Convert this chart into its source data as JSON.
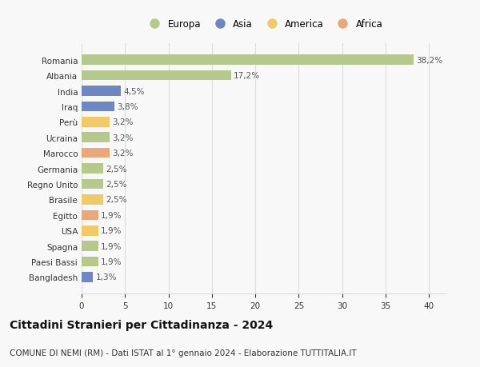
{
  "categories": [
    "Romania",
    "Albania",
    "India",
    "Iraq",
    "Perù",
    "Ucraina",
    "Marocco",
    "Germania",
    "Regno Unito",
    "Brasile",
    "Egitto",
    "USA",
    "Spagna",
    "Paesi Bassi",
    "Bangladesh"
  ],
  "values": [
    38.2,
    17.2,
    4.5,
    3.8,
    3.2,
    3.2,
    3.2,
    2.5,
    2.5,
    2.5,
    1.9,
    1.9,
    1.9,
    1.9,
    1.3
  ],
  "labels": [
    "38,2%",
    "17,2%",
    "4,5%",
    "3,8%",
    "3,2%",
    "3,2%",
    "3,2%",
    "2,5%",
    "2,5%",
    "2,5%",
    "1,9%",
    "1,9%",
    "1,9%",
    "1,9%",
    "1,3%"
  ],
  "colors": [
    "#b5c98e",
    "#b5c98e",
    "#6f87c0",
    "#6f87c0",
    "#f0c96a",
    "#b5c98e",
    "#e8a87c",
    "#b5c98e",
    "#b5c98e",
    "#f0c96a",
    "#e8a87c",
    "#f0c96a",
    "#b5c98e",
    "#b5c98e",
    "#6f87c0"
  ],
  "legend_labels": [
    "Europa",
    "Asia",
    "America",
    "Africa"
  ],
  "legend_colors": [
    "#b5c98e",
    "#6f87c0",
    "#f0c96a",
    "#e8a87c"
  ],
  "xlim": [
    0,
    42
  ],
  "xticks": [
    0,
    5,
    10,
    15,
    20,
    25,
    30,
    35,
    40
  ],
  "title": "Cittadini Stranieri per Cittadinanza - 2024",
  "subtitle": "COMUNE DI NEMI (RM) - Dati ISTAT al 1° gennaio 2024 - Elaborazione TUTTITALIA.IT",
  "background_color": "#f8f8f8",
  "grid_color": "#dddddd",
  "bar_height": 0.65,
  "label_fontsize": 7.5,
  "tick_fontsize": 7.5,
  "title_fontsize": 10,
  "subtitle_fontsize": 7.5
}
